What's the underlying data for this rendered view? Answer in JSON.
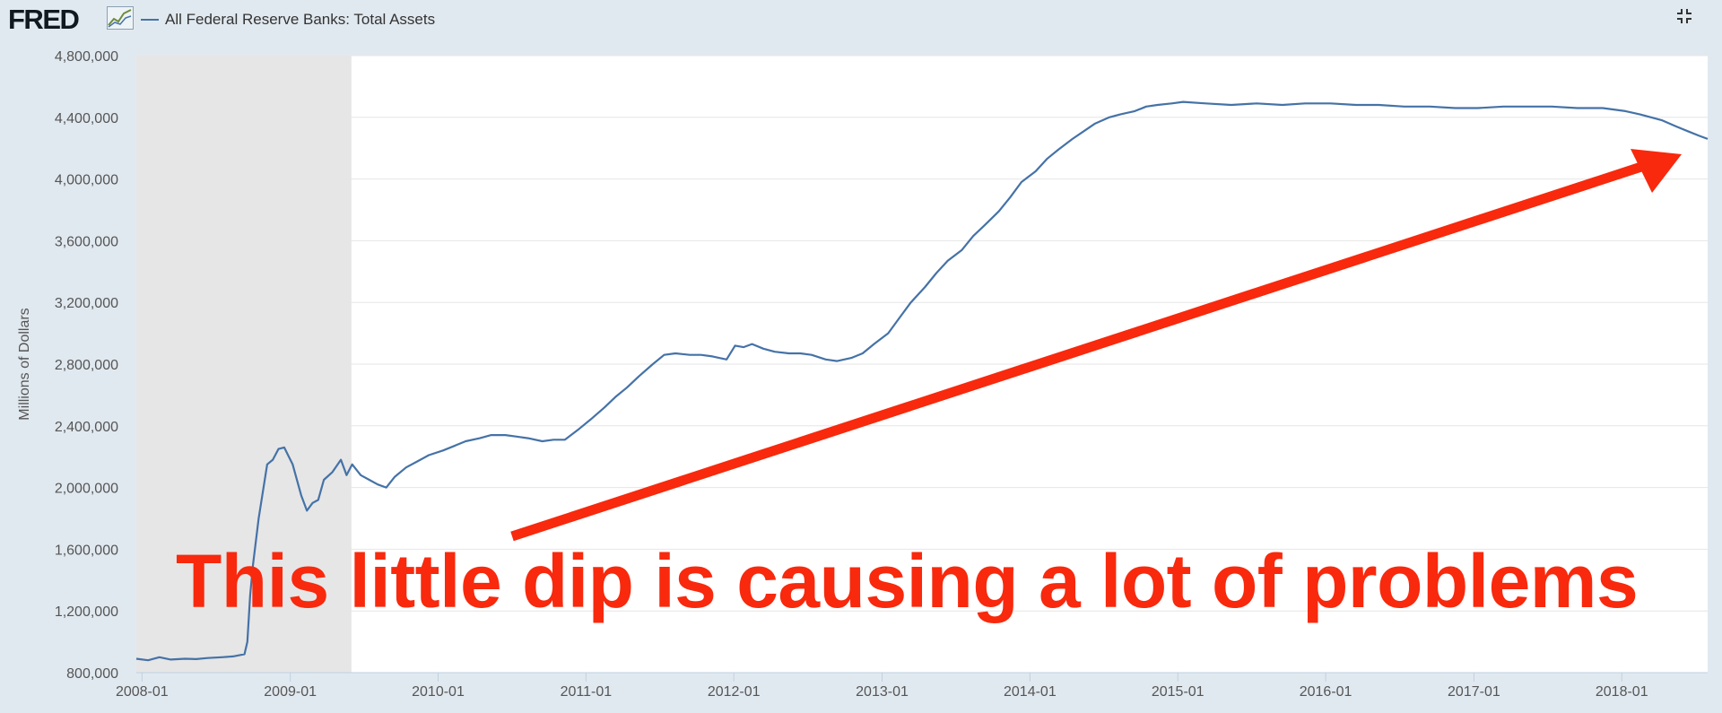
{
  "header": {
    "logo_text": "FRED",
    "series_label": "All Federal Reserve Banks: Total Assets",
    "fullscreen_icon": "collapse-fullscreen-icon"
  },
  "annotation": {
    "caption": "This little dip is causing a lot of problems",
    "color": "#f8290d"
  },
  "colors": {
    "background": "#e1e9f0",
    "plot_background": "#ffffff",
    "recession_shading": "#e6e6e6",
    "series_line": "#4572a7"
  },
  "chart_data": {
    "type": "line",
    "title": "",
    "xlabel": "",
    "ylabel": "Millions of Dollars",
    "ylim": [
      800000,
      4800000
    ],
    "yticks": [
      800000,
      1200000,
      1600000,
      2000000,
      2400000,
      2800000,
      3200000,
      3600000,
      4000000,
      4400000,
      4800000
    ],
    "ytick_labels": [
      "800,000",
      "1,200,000",
      "1,600,000",
      "2,000,000",
      "2,400,000",
      "2,800,000",
      "3,200,000",
      "3,600,000",
      "4,000,000",
      "4,400,000",
      "4,800,000"
    ],
    "xlim": [
      "2007-12-18",
      "2018-08-01"
    ],
    "xticks": [
      "2008-01-01",
      "2009-01-01",
      "2010-01-01",
      "2011-01-01",
      "2012-01-01",
      "2013-01-01",
      "2014-01-01",
      "2015-01-01",
      "2016-01-01",
      "2017-01-01",
      "2018-01-01"
    ],
    "xtick_labels": [
      "2008-01",
      "2009-01",
      "2010-01",
      "2011-01",
      "2012-01",
      "2013-01",
      "2014-01",
      "2015-01",
      "2016-01",
      "2017-01",
      "2018-01"
    ],
    "grid": true,
    "legend_placement": "top-left",
    "recession": {
      "start": "2007-12-01",
      "end": "2009-06-01"
    },
    "series": [
      {
        "name": "All Federal Reserve Banks: Total Assets",
        "color": "#4572a7",
        "points": [
          [
            "2007-12-18",
            890000
          ],
          [
            "2008-01-16",
            880000
          ],
          [
            "2008-02-13",
            900000
          ],
          [
            "2008-03-12",
            885000
          ],
          [
            "2008-04-16",
            890000
          ],
          [
            "2008-05-14",
            888000
          ],
          [
            "2008-06-11",
            895000
          ],
          [
            "2008-07-16",
            900000
          ],
          [
            "2008-08-13",
            905000
          ],
          [
            "2008-09-10",
            920000
          ],
          [
            "2008-09-17",
            1000000
          ],
          [
            "2008-09-24",
            1300000
          ],
          [
            "2008-10-01",
            1500000
          ],
          [
            "2008-10-15",
            1800000
          ],
          [
            "2008-11-05",
            2150000
          ],
          [
            "2008-11-19",
            2180000
          ],
          [
            "2008-12-03",
            2250000
          ],
          [
            "2008-12-17",
            2260000
          ],
          [
            "2009-01-07",
            2150000
          ],
          [
            "2009-01-28",
            1950000
          ],
          [
            "2009-02-11",
            1850000
          ],
          [
            "2009-02-25",
            1900000
          ],
          [
            "2009-03-11",
            1920000
          ],
          [
            "2009-03-25",
            2050000
          ],
          [
            "2009-04-15",
            2100000
          ],
          [
            "2009-05-06",
            2180000
          ],
          [
            "2009-05-20",
            2080000
          ],
          [
            "2009-06-03",
            2150000
          ],
          [
            "2009-06-24",
            2080000
          ],
          [
            "2009-07-15",
            2050000
          ],
          [
            "2009-08-05",
            2020000
          ],
          [
            "2009-08-26",
            2000000
          ],
          [
            "2009-09-16",
            2070000
          ],
          [
            "2009-10-14",
            2130000
          ],
          [
            "2009-11-11",
            2170000
          ],
          [
            "2009-12-09",
            2210000
          ],
          [
            "2010-01-13",
            2240000
          ],
          [
            "2010-02-10",
            2270000
          ],
          [
            "2010-03-10",
            2300000
          ],
          [
            "2010-04-14",
            2320000
          ],
          [
            "2010-05-12",
            2340000
          ],
          [
            "2010-06-16",
            2340000
          ],
          [
            "2010-07-14",
            2330000
          ],
          [
            "2010-08-11",
            2320000
          ],
          [
            "2010-09-15",
            2300000
          ],
          [
            "2010-10-13",
            2310000
          ],
          [
            "2010-11-10",
            2310000
          ],
          [
            "2010-12-15",
            2380000
          ],
          [
            "2011-01-12",
            2440000
          ],
          [
            "2011-02-16",
            2520000
          ],
          [
            "2011-03-16",
            2590000
          ],
          [
            "2011-04-13",
            2650000
          ],
          [
            "2011-05-11",
            2720000
          ],
          [
            "2011-06-15",
            2800000
          ],
          [
            "2011-07-13",
            2860000
          ],
          [
            "2011-08-10",
            2870000
          ],
          [
            "2011-09-14",
            2860000
          ],
          [
            "2011-10-12",
            2860000
          ],
          [
            "2011-11-09",
            2850000
          ],
          [
            "2011-12-14",
            2830000
          ],
          [
            "2012-01-04",
            2920000
          ],
          [
            "2012-01-25",
            2910000
          ],
          [
            "2012-02-15",
            2930000
          ],
          [
            "2012-03-14",
            2900000
          ],
          [
            "2012-04-11",
            2880000
          ],
          [
            "2012-05-16",
            2870000
          ],
          [
            "2012-06-13",
            2870000
          ],
          [
            "2012-07-11",
            2860000
          ],
          [
            "2012-08-15",
            2830000
          ],
          [
            "2012-09-12",
            2820000
          ],
          [
            "2012-10-17",
            2840000
          ],
          [
            "2012-11-14",
            2870000
          ],
          [
            "2012-12-12",
            2930000
          ],
          [
            "2013-01-16",
            3000000
          ],
          [
            "2013-02-13",
            3100000
          ],
          [
            "2013-03-13",
            3200000
          ],
          [
            "2013-04-17",
            3300000
          ],
          [
            "2013-05-15",
            3390000
          ],
          [
            "2013-06-12",
            3470000
          ],
          [
            "2013-07-17",
            3540000
          ],
          [
            "2013-08-14",
            3630000
          ],
          [
            "2013-09-11",
            3700000
          ],
          [
            "2013-10-16",
            3790000
          ],
          [
            "2013-11-13",
            3880000
          ],
          [
            "2013-12-11",
            3980000
          ],
          [
            "2014-01-15",
            4050000
          ],
          [
            "2014-02-12",
            4130000
          ],
          [
            "2014-03-12",
            4190000
          ],
          [
            "2014-04-16",
            4260000
          ],
          [
            "2014-05-14",
            4310000
          ],
          [
            "2014-06-11",
            4360000
          ],
          [
            "2014-07-16",
            4400000
          ],
          [
            "2014-08-13",
            4420000
          ],
          [
            "2014-09-17",
            4440000
          ],
          [
            "2014-10-15",
            4470000
          ],
          [
            "2014-11-12",
            4480000
          ],
          [
            "2014-12-17",
            4490000
          ],
          [
            "2015-01-14",
            4500000
          ],
          [
            "2015-03-11",
            4490000
          ],
          [
            "2015-05-13",
            4480000
          ],
          [
            "2015-07-15",
            4490000
          ],
          [
            "2015-09-16",
            4480000
          ],
          [
            "2015-11-11",
            4490000
          ],
          [
            "2016-01-13",
            4490000
          ],
          [
            "2016-03-16",
            4480000
          ],
          [
            "2016-05-11",
            4480000
          ],
          [
            "2016-07-13",
            4470000
          ],
          [
            "2016-09-14",
            4470000
          ],
          [
            "2016-11-16",
            4460000
          ],
          [
            "2017-01-11",
            4460000
          ],
          [
            "2017-03-15",
            4470000
          ],
          [
            "2017-05-17",
            4470000
          ],
          [
            "2017-07-12",
            4470000
          ],
          [
            "2017-09-13",
            4460000
          ],
          [
            "2017-11-15",
            4460000
          ],
          [
            "2018-01-10",
            4440000
          ],
          [
            "2018-02-14",
            4420000
          ],
          [
            "2018-03-14",
            4400000
          ],
          [
            "2018-04-11",
            4380000
          ],
          [
            "2018-05-16",
            4340000
          ],
          [
            "2018-06-13",
            4310000
          ],
          [
            "2018-07-11",
            4280000
          ],
          [
            "2018-08-01",
            4260000
          ]
        ]
      }
    ]
  }
}
